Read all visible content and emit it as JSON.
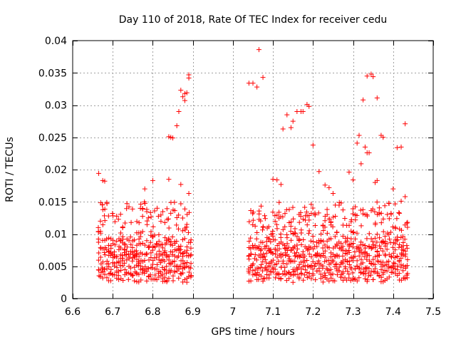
{
  "chart_data": {
    "type": "scatter",
    "title": "Day 110 of 2018, Rate Of TEC Index for receiver cedu",
    "xlabel": "GPS time / hours",
    "ylabel": "ROTI / TECUs",
    "xlim": [
      6.6,
      7.5
    ],
    "ylim": [
      0,
      0.04
    ],
    "x_ticks": [
      6.6,
      6.7,
      6.8,
      6.9,
      7.0,
      7.1,
      7.2,
      7.3,
      7.4,
      7.5
    ],
    "x_tick_labels": [
      "6.6",
      "6.7",
      "6.8",
      "6.9",
      "7",
      "7.1",
      "7.2",
      "7.3",
      "7.4",
      "7.5"
    ],
    "y_ticks": [
      0,
      0.005,
      0.01,
      0.015,
      0.02,
      0.025,
      0.03,
      0.035,
      0.04
    ],
    "y_tick_labels": [
      "0",
      "0.005",
      "0.01",
      "0.015",
      "0.02",
      "0.025",
      "0.03",
      "0.035",
      "0.04"
    ],
    "grid": true,
    "marker": "+",
    "color": "#ff0000",
    "series": [
      {
        "name": "ROTI",
        "segments": [
          [
            6.665,
            6.895
          ],
          [
            7.04,
            7.435
          ]
        ],
        "base_bands": [
          0.0035,
          0.0043,
          0.0052,
          0.0061,
          0.0072,
          0.0085
        ],
        "outliers": [
          [
            6.665,
            0.0194
          ],
          [
            6.675,
            0.0183
          ],
          [
            6.68,
            0.0182
          ],
          [
            6.78,
            0.017
          ],
          [
            6.8,
            0.0183
          ],
          [
            6.84,
            0.0185
          ],
          [
            6.84,
            0.0251
          ],
          [
            6.845,
            0.025
          ],
          [
            6.85,
            0.0249
          ],
          [
            6.86,
            0.0268
          ],
          [
            6.865,
            0.029
          ],
          [
            6.87,
            0.0323
          ],
          [
            6.875,
            0.0313
          ],
          [
            6.88,
            0.0318
          ],
          [
            6.88,
            0.0307
          ],
          [
            6.885,
            0.0319
          ],
          [
            6.89,
            0.0342
          ],
          [
            6.89,
            0.0347
          ],
          [
            6.89,
            0.0163
          ],
          [
            6.87,
            0.0177
          ],
          [
            7.04,
            0.0334
          ],
          [
            7.05,
            0.0334
          ],
          [
            7.06,
            0.0328
          ],
          [
            7.065,
            0.0386
          ],
          [
            7.075,
            0.0343
          ],
          [
            7.1,
            0.0185
          ],
          [
            7.11,
            0.0184
          ],
          [
            7.12,
            0.0177
          ],
          [
            7.125,
            0.0263
          ],
          [
            7.135,
            0.0285
          ],
          [
            7.145,
            0.0265
          ],
          [
            7.15,
            0.0275
          ],
          [
            7.16,
            0.029
          ],
          [
            7.17,
            0.029
          ],
          [
            7.175,
            0.029
          ],
          [
            7.185,
            0.0301
          ],
          [
            7.19,
            0.0298
          ],
          [
            7.2,
            0.0238
          ],
          [
            7.215,
            0.0197
          ],
          [
            7.23,
            0.0176
          ],
          [
            7.24,
            0.0172
          ],
          [
            7.25,
            0.0163
          ],
          [
            7.29,
            0.0196
          ],
          [
            7.3,
            0.0184
          ],
          [
            7.31,
            0.0241
          ],
          [
            7.315,
            0.0253
          ],
          [
            7.32,
            0.0209
          ],
          [
            7.325,
            0.0308
          ],
          [
            7.33,
            0.0235
          ],
          [
            7.335,
            0.0345
          ],
          [
            7.335,
            0.0226
          ],
          [
            7.34,
            0.0226
          ],
          [
            7.345,
            0.0348
          ],
          [
            7.35,
            0.0344
          ],
          [
            7.355,
            0.018
          ],
          [
            7.36,
            0.0183
          ],
          [
            7.36,
            0.0311
          ],
          [
            7.37,
            0.0253
          ],
          [
            7.375,
            0.025
          ],
          [
            7.4,
            0.017
          ],
          [
            7.41,
            0.0234
          ],
          [
            7.42,
            0.0235
          ],
          [
            7.43,
            0.0271
          ],
          [
            7.43,
            0.0158
          ],
          [
            7.42,
            0.0151
          ]
        ]
      }
    ]
  }
}
